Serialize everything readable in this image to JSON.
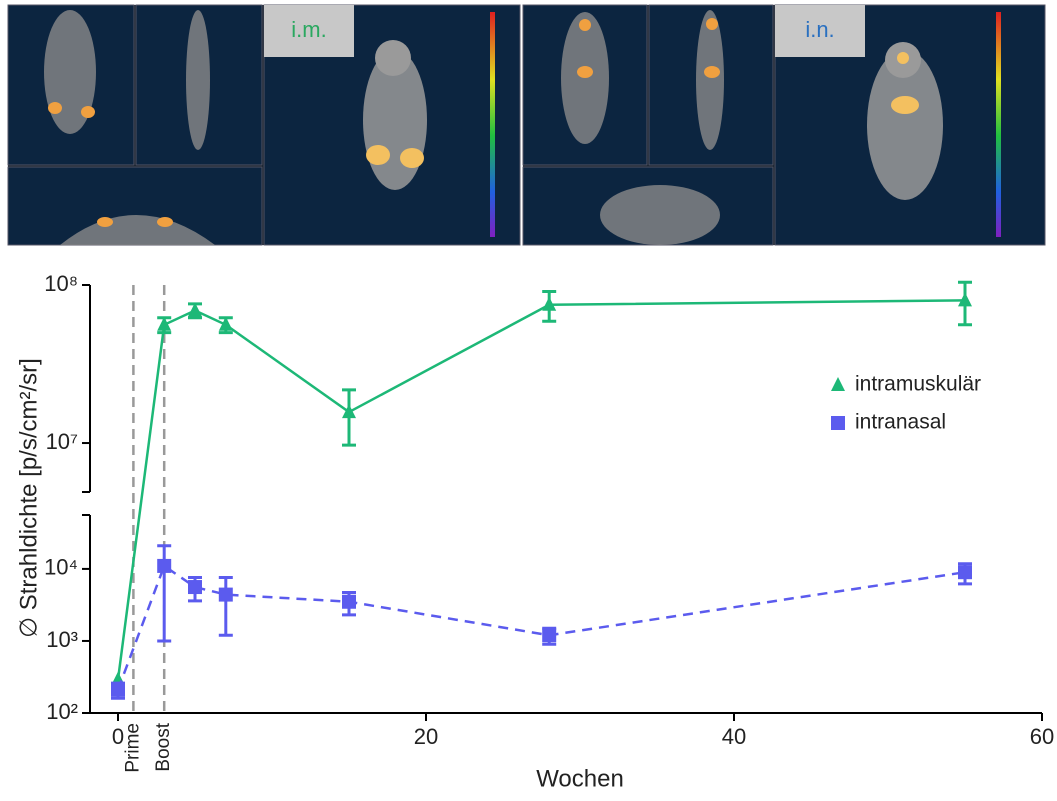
{
  "images": {
    "left_label": "i.m.",
    "right_label": "i.n."
  },
  "chart_data": {
    "type": "line",
    "yscale": "log",
    "y_label": "∅ Strahldichte [p/s/cm²/sr]",
    "x_label": "Wochen",
    "xlim": [
      0,
      60
    ],
    "xticks": [
      0,
      20,
      40,
      60
    ],
    "ylim": [
      100,
      100000000
    ],
    "axis_break": [
      56000,
      4900000
    ],
    "yticks": [
      {
        "value": 100,
        "label": "10²"
      },
      {
        "value": 1000,
        "label": "10³"
      },
      {
        "value": 10000,
        "label": "10⁴"
      },
      {
        "value": 10000000,
        "label": "10⁷"
      },
      {
        "value": 100000000,
        "label": "10⁸"
      }
    ],
    "vlines": [
      {
        "x": 1,
        "label": "Prime"
      },
      {
        "x": 3,
        "label": "Boost"
      }
    ],
    "legend": "right",
    "series": [
      {
        "name": "intramuskulär",
        "color": "#1db877",
        "marker": "triangle",
        "dashed": false,
        "x": [
          0,
          3,
          5,
          7,
          15,
          28,
          55
        ],
        "values": [
          290,
          56000000,
          69000000,
          56000000,
          15700000,
          75000000,
          80000000
        ],
        "errors": [
          0,
          6000000,
          7000000,
          6000000,
          6000000,
          16000000,
          24000000
        ]
      },
      {
        "name": "intranasal",
        "color": "#5b5bee",
        "marker": "square",
        "dashed": true,
        "x": [
          0,
          3,
          5,
          7,
          15,
          28,
          55
        ],
        "values": [
          210,
          11000,
          5600,
          4400,
          3500,
          1200,
          9000
        ],
        "errors": [
          50,
          10000,
          2000,
          3200,
          1200,
          300,
          2800
        ]
      }
    ]
  }
}
